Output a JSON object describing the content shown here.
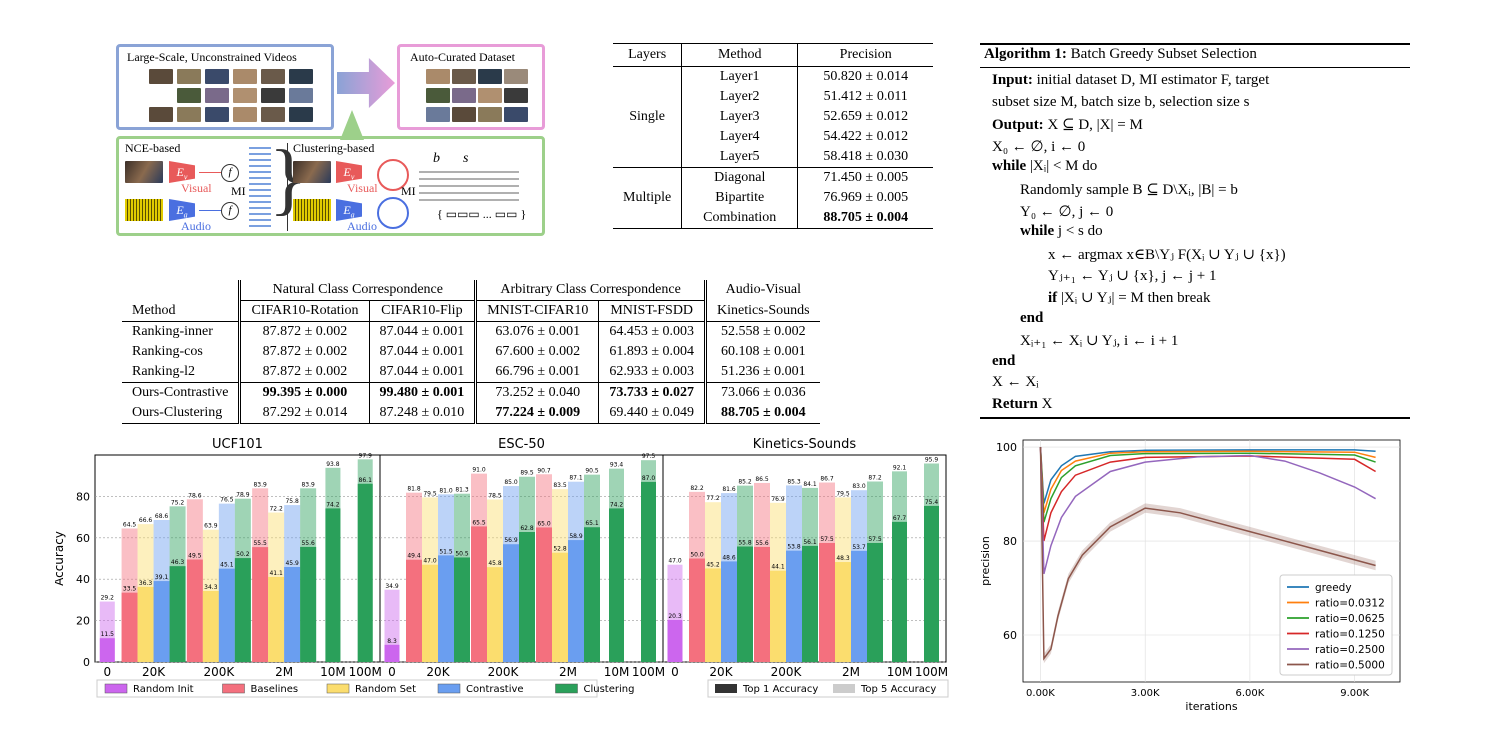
{
  "diagram": {
    "left_title": "Large-Scale, Unconstrained Videos",
    "right_title": "Auto-Curated Dataset",
    "nce_label": "NCE-based",
    "clustering_label": "Clustering-based",
    "visual": "Visual",
    "audio": "Audio",
    "mi": "MI",
    "f": "f",
    "ev": "E",
    "ev_sub": "v",
    "ea": "E",
    "ea_sub": "a",
    "ellipsis": "...",
    "b": "b",
    "s": "s",
    "colors": {
      "blue": "#8aa3d6",
      "pink": "#e89cd8",
      "green": "#9dd08a",
      "visual": "#e85a5a",
      "audio": "#4a6fe0"
    }
  },
  "table1": {
    "headers": [
      "Layers",
      "Method",
      "Precision"
    ],
    "groups": [
      {
        "name": "Single",
        "rows": [
          [
            "Layer1",
            "50.820 ± 0.014"
          ],
          [
            "Layer2",
            "51.412 ± 0.011"
          ],
          [
            "Layer3",
            "52.659 ± 0.012"
          ],
          [
            "Layer4",
            "54.422 ± 0.012"
          ],
          [
            "Layer5",
            "58.418 ± 0.030"
          ]
        ]
      },
      {
        "name": "Multiple",
        "rows": [
          [
            "Diagonal",
            "71.450 ± 0.005"
          ],
          [
            "Bipartite",
            "76.969 ± 0.005"
          ],
          [
            "Combination",
            "88.705 ± 0.004"
          ]
        ]
      }
    ],
    "bold_value": "88.705"
  },
  "algorithm": {
    "title_bold": "Algorithm 1:",
    "title": "Batch Greedy Subset Selection",
    "lines": [
      {
        "indent": 0,
        "bold": "Input:",
        "text": " initial dataset D, MI estimator F, target"
      },
      {
        "indent": 0,
        "bold": "",
        "text": "  subset size M, batch size b, selection size s"
      },
      {
        "indent": 0,
        "bold": "Output:",
        "text": " X ⊆ D, |X| = M"
      },
      {
        "indent": 0,
        "bold": "",
        "text": "X₀ ← ∅, i ← 0"
      },
      {
        "indent": 0,
        "bold": "while",
        "text": " |Xᵢ| < M do"
      },
      {
        "indent": 1,
        "bold": "",
        "text": "Randomly sample B ⊆ D\\Xᵢ, |B| = b"
      },
      {
        "indent": 1,
        "bold": "",
        "text": "Y₀ ← ∅, j ← 0"
      },
      {
        "indent": 1,
        "bold": "while",
        "text": " j < s do"
      },
      {
        "indent": 2,
        "bold": "",
        "text": "x ← argmax x∈B\\Yⱼ F(Xᵢ ∪ Yⱼ ∪ {x})"
      },
      {
        "indent": 2,
        "bold": "",
        "text": "Yⱼ₊₁ ← Yⱼ ∪ {x}, j ← j + 1"
      },
      {
        "indent": 2,
        "bold": "if",
        "text": " |Xᵢ ∪ Yⱼ| = M then break"
      },
      {
        "indent": 1,
        "bold": "end",
        "text": ""
      },
      {
        "indent": 1,
        "bold": "",
        "text": "Xᵢ₊₁ ← Xᵢ ∪ Yⱼ, i ← i + 1"
      },
      {
        "indent": 0,
        "bold": "end",
        "text": ""
      },
      {
        "indent": 0,
        "bold": "",
        "text": "X ← Xᵢ"
      },
      {
        "indent": 0,
        "bold": "Return",
        "text": " X"
      }
    ]
  },
  "table2": {
    "group_headers": [
      "Natural Class Correspondence",
      "Arbitrary Class Correspondence",
      "Audio-Visual"
    ],
    "headers": [
      "Method",
      "CIFAR10-Rotation",
      "CIFAR10-Flip",
      "MNIST-CIFAR10",
      "MNIST-FSDD",
      "Kinetics-Sounds"
    ],
    "rows": [
      [
        "Ranking-inner",
        "87.872 ± 0.002",
        "87.044 ± 0.001",
        "63.076 ± 0.001",
        "64.453 ± 0.003",
        "52.558 ± 0.002"
      ],
      [
        "Ranking-cos",
        "87.872 ± 0.002",
        "87.044 ± 0.001",
        "67.600 ± 0.002",
        "61.893 ± 0.004",
        "60.108 ± 0.001"
      ],
      [
        "Ranking-l2",
        "87.872 ± 0.002",
        "87.044 ± 0.001",
        "66.796 ± 0.001",
        "62.933 ± 0.003",
        "51.236 ± 0.001"
      ],
      [
        "Ours-Contrastive",
        "99.395 ± 0.000",
        "99.480 ± 0.001",
        "73.252 ± 0.040",
        "73.733 ± 0.027",
        "73.066 ± 0.036"
      ],
      [
        "Ours-Clustering",
        "87.292 ± 0.014",
        "87.248 ± 0.010",
        "77.224 ± 0.009",
        "69.440 ± 0.049",
        "88.705 ± 0.004"
      ]
    ],
    "bold_cells": [
      [
        3,
        1
      ],
      [
        3,
        2
      ],
      [
        3,
        4
      ],
      [
        4,
        3
      ],
      [
        4,
        5
      ]
    ]
  },
  "chart_data": [
    {
      "type": "bar",
      "panels": [
        "UCF101",
        "ESC-50",
        "Kinetics-Sounds"
      ],
      "ylabel": "Accuracy",
      "ylim": [
        0,
        100
      ],
      "yticks": [
        0,
        20,
        40,
        60,
        80
      ],
      "categories": [
        "0",
        "20K",
        "200K",
        "2M",
        "10M",
        "100M"
      ],
      "series_names": [
        "Random Init",
        "Baselines",
        "Random Set",
        "Contrastive",
        "Clustering"
      ],
      "series_colors": {
        "Random Init": "#cc66ee",
        "Baselines": "#f4707e",
        "Random Set": "#fbdd6e",
        "Contrastive": "#6a9ef0",
        "Clustering": "#2aa05a"
      },
      "legend_quality": [
        "Top 1 Accuracy",
        "Top 5 Accuracy"
      ],
      "data": {
        "UCF101": [
          [
            {
              "s": "Random Init",
              "t1": 11.5,
              "t5": 29.2
            }
          ],
          [
            {
              "s": "Baselines",
              "t1": 33.5,
              "t5": 64.5
            },
            {
              "s": "Random Set",
              "t1": 36.3,
              "t5": 66.6
            },
            {
              "s": "Contrastive",
              "t1": 39.1,
              "t5": 68.6
            },
            {
              "s": "Clustering",
              "t1": 46.3,
              "t5": 75.2
            }
          ],
          [
            {
              "s": "Baselines",
              "t1": 49.5,
              "t5": 78.6
            },
            {
              "s": "Random Set",
              "t1": 34.3,
              "t5": 63.9
            },
            {
              "s": "Contrastive",
              "t1": 45.1,
              "t5": 76.5
            },
            {
              "s": "Clustering",
              "t1": 50.2,
              "t5": 78.9
            }
          ],
          [
            {
              "s": "Baselines",
              "t1": 55.5,
              "t5": 83.9
            },
            {
              "s": "Random Set",
              "t1": 41.1,
              "t5": 72.2
            },
            {
              "s": "Contrastive",
              "t1": 45.9,
              "t5": 75.8
            },
            {
              "s": "Clustering",
              "t1": 55.6,
              "t5": 83.9
            }
          ],
          [
            {
              "s": "Clustering",
              "t1": 74.2,
              "t5": 93.8
            }
          ],
          [
            {
              "s": "Clustering",
              "t1": 86.1,
              "t5": 97.9
            }
          ]
        ],
        "ESC-50": [
          [
            {
              "s": "Random Init",
              "t1": 8.3,
              "t5": 34.9
            }
          ],
          [
            {
              "s": "Baselines",
              "t1": 49.4,
              "t5": 81.8
            },
            {
              "s": "Random Set",
              "t1": 47.0,
              "t5": 79.5
            },
            {
              "s": "Contrastive",
              "t1": 51.5,
              "t5": 81.0
            },
            {
              "s": "Clustering",
              "t1": 50.5,
              "t5": 81.3
            }
          ],
          [
            {
              "s": "Baselines",
              "t1": 65.5,
              "t5": 91.0
            },
            {
              "s": "Random Set",
              "t1": 45.8,
              "t5": 78.5
            },
            {
              "s": "Contrastive",
              "t1": 56.9,
              "t5": 85.0
            },
            {
              "s": "Clustering",
              "t1": 62.8,
              "t5": 89.5
            }
          ],
          [
            {
              "s": "Baselines",
              "t1": 65.0,
              "t5": 90.7
            },
            {
              "s": "Random Set",
              "t1": 52.8,
              "t5": 83.5
            },
            {
              "s": "Contrastive",
              "t1": 58.9,
              "t5": 87.1
            },
            {
              "s": "Clustering",
              "t1": 65.1,
              "t5": 90.5
            }
          ],
          [
            {
              "s": "Clustering",
              "t1": 74.2,
              "t5": 93.4
            }
          ],
          [
            {
              "s": "Clustering",
              "t1": 87.0,
              "t5": 97.5
            }
          ]
        ],
        "Kinetics-Sounds": [
          [
            {
              "s": "Random Init",
              "t1": 20.3,
              "t5": 47.0
            }
          ],
          [
            {
              "s": "Baselines",
              "t1": 50.0,
              "t5": 82.2
            },
            {
              "s": "Random Set",
              "t1": 45.2,
              "t5": 77.2
            },
            {
              "s": "Contrastive",
              "t1": 48.6,
              "t5": 81.6
            },
            {
              "s": "Clustering",
              "t1": 55.8,
              "t5": 85.2
            }
          ],
          [
            {
              "s": "Baselines",
              "t1": 55.6,
              "t5": 86.5
            },
            {
              "s": "Random Set",
              "t1": 44.1,
              "t5": 76.9
            },
            {
              "s": "Contrastive",
              "t1": 53.8,
              "t5": 85.3
            },
            {
              "s": "Clustering",
              "t1": 56.1,
              "t5": 84.1
            }
          ],
          [
            {
              "s": "Baselines",
              "t1": 57.5,
              "t5": 86.7
            },
            {
              "s": "Random Set",
              "t1": 48.3,
              "t5": 79.5
            },
            {
              "s": "Contrastive",
              "t1": 53.7,
              "t5": 83.0
            },
            {
              "s": "Clustering",
              "t1": 57.5,
              "t5": 87.2
            }
          ],
          [
            {
              "s": "Clustering",
              "t1": 67.7,
              "t5": 92.1
            }
          ],
          [
            {
              "s": "Clustering",
              "t1": 75.4,
              "t5": 95.9
            }
          ]
        ]
      }
    },
    {
      "type": "line",
      "xlabel": "iterations",
      "ylabel": "precision",
      "xlim": [
        -500,
        10300
      ],
      "ylim": [
        50,
        101.5
      ],
      "xticks": [
        0,
        3000,
        6000,
        9000
      ],
      "xtick_labels": [
        "0.00K",
        "3.00K",
        "6.00K",
        "9.00K"
      ],
      "yticks": [
        60,
        80,
        100
      ],
      "legend": "bottom-right",
      "series": [
        {
          "name": "greedy",
          "color": "#1f77b4",
          "x": [
            0,
            100,
            300,
            600,
            1000,
            2000,
            3000,
            6000,
            9000,
            9600
          ],
          "y": [
            100,
            88,
            93,
            96,
            98,
            99,
            99.3,
            99.4,
            99.4,
            99.1
          ]
        },
        {
          "name": "ratio=0.0312",
          "color": "#ff7f0e",
          "x": [
            0,
            100,
            300,
            600,
            1000,
            2000,
            3000,
            6000,
            9000,
            9600
          ],
          "y": [
            100,
            86,
            91,
            95,
            97,
            98.7,
            99,
            99.1,
            98.9,
            97.8
          ]
        },
        {
          "name": "ratio=0.0625",
          "color": "#2ca02c",
          "x": [
            0,
            100,
            300,
            600,
            1000,
            2000,
            3000,
            6000,
            9000,
            9600
          ],
          "y": [
            100,
            84,
            89,
            93.5,
            96,
            98.2,
            98.6,
            98.7,
            98.3,
            96.8
          ]
        },
        {
          "name": "ratio=0.1250",
          "color": "#d62728",
          "x": [
            0,
            100,
            300,
            600,
            1000,
            2000,
            3000,
            6000,
            9000,
            9600
          ],
          "y": [
            100,
            80,
            86,
            90.5,
            94,
            96.8,
            97.8,
            98.1,
            97.4,
            94.8
          ]
        },
        {
          "name": "ratio=0.2500",
          "color": "#9467bd",
          "x": [
            0,
            100,
            300,
            600,
            1000,
            2000,
            3000,
            4500,
            6000,
            7000,
            8000,
            9000,
            9600
          ],
          "y": [
            100,
            73,
            79,
            85,
            89.5,
            94.8,
            96.8,
            97.9,
            98.2,
            97,
            94.5,
            91.5,
            89
          ]
        },
        {
          "name": "ratio=0.5000",
          "color": "#8c564b",
          "x": [
            0,
            100,
            200,
            300,
            500,
            800,
            1200,
            2000,
            3000,
            4000,
            6000,
            8000,
            9600
          ],
          "y": [
            100,
            55,
            56,
            57,
            64,
            72,
            77,
            83,
            87,
            86,
            82,
            78,
            74.8
          ]
        }
      ]
    }
  ]
}
